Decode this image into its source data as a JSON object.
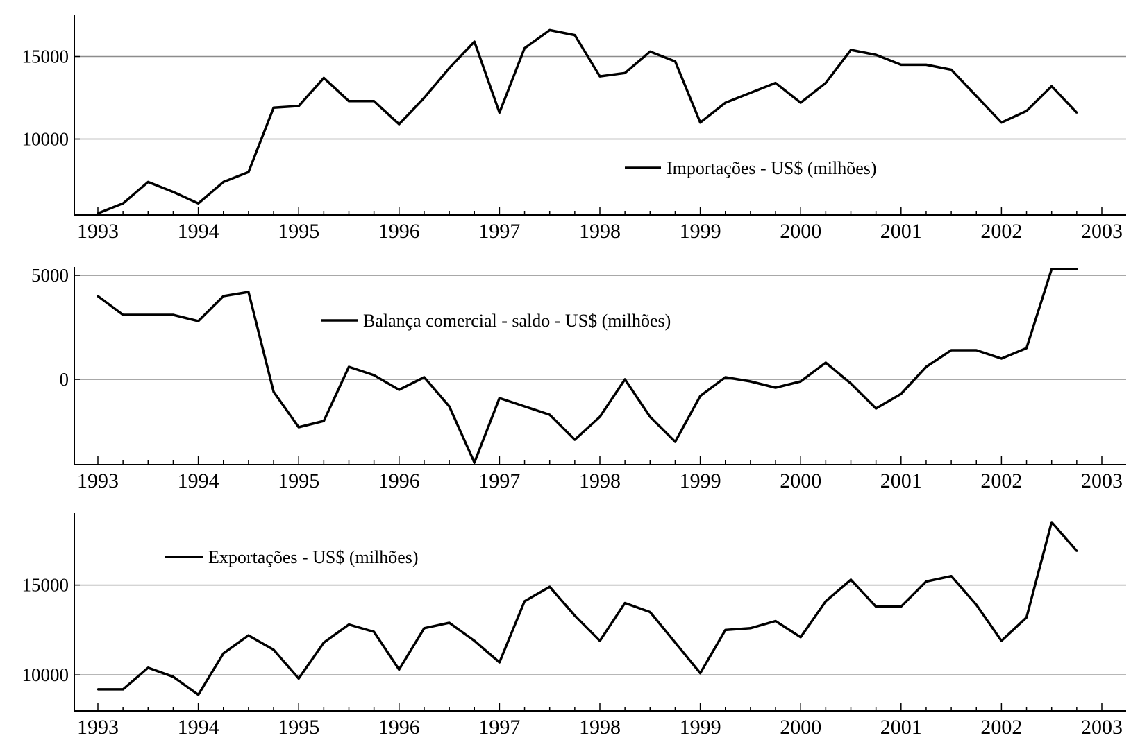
{
  "chart_data": [
    {
      "type": "line",
      "title": "",
      "xlabel": "",
      "ylabel": "",
      "xlim": [
        1992.75,
        2003.25
      ],
      "ylim": [
        5400,
        17500
      ],
      "x_ticks": [
        1993,
        1994,
        1995,
        1996,
        1997,
        1998,
        1999,
        2000,
        2001,
        2002,
        2003
      ],
      "y_ticks": [
        10000,
        15000
      ],
      "grid": "horizontal at y ticks",
      "legend_position": "center-right",
      "series": [
        {
          "name": "Importações - US$ (milhões)",
          "x": [
            1993,
            1993.25,
            1993.5,
            1993.75,
            1994,
            1994.25,
            1994.5,
            1994.75,
            1995,
            1995.25,
            1995.5,
            1995.75,
            1996,
            1996.25,
            1996.5,
            1996.75,
            1997,
            1997.25,
            1997.5,
            1997.75,
            1998,
            1998.25,
            1998.5,
            1998.75,
            1999,
            1999.25,
            1999.5,
            1999.75,
            2000,
            2000.25,
            2000.5,
            2000.75,
            2001,
            2001.25,
            2001.5,
            2001.75,
            2002,
            2002.25,
            2002.5,
            2002.75
          ],
          "values": [
            5500,
            6100,
            7400,
            6800,
            6100,
            7400,
            8000,
            11900,
            12000,
            13700,
            12300,
            12300,
            10900,
            12500,
            14300,
            15900,
            11600,
            15500,
            16600,
            16300,
            13800,
            14000,
            15300,
            14700,
            11000,
            12200,
            12800,
            13400,
            12200,
            13400,
            15400,
            15100,
            14500,
            14500,
            14200,
            12600,
            11000,
            11700,
            13200,
            11600
          ]
        }
      ]
    },
    {
      "type": "line",
      "title": "",
      "xlabel": "",
      "ylabel": "",
      "xlim": [
        1992.75,
        2003.25
      ],
      "ylim": [
        -4100,
        5400
      ],
      "x_ticks": [
        1993,
        1994,
        1995,
        1996,
        1997,
        1998,
        1999,
        2000,
        2001,
        2002,
        2003
      ],
      "y_ticks": [
        0,
        5000
      ],
      "grid": "horizontal at y ticks",
      "legend_position": "top-center",
      "series": [
        {
          "name": "Balança comercial - saldo - US$ (milhões)",
          "x": [
            1993,
            1993.25,
            1993.5,
            1993.75,
            1994,
            1994.25,
            1994.5,
            1994.75,
            1995,
            1995.25,
            1995.5,
            1995.75,
            1996,
            1996.25,
            1996.5,
            1996.75,
            1997,
            1997.25,
            1997.5,
            1997.75,
            1998,
            1998.25,
            1998.5,
            1998.75,
            1999,
            1999.25,
            1999.5,
            1999.75,
            2000,
            2000.25,
            2000.5,
            2000.75,
            2001,
            2001.25,
            2001.5,
            2001.75,
            2002,
            2002.25,
            2002.5,
            2002.75
          ],
          "values": [
            4000,
            3100,
            3100,
            3100,
            2800,
            4000,
            4200,
            -600,
            -2300,
            -2000,
            600,
            200,
            -500,
            100,
            -1300,
            -4000,
            -900,
            -1300,
            -1700,
            -2900,
            -1800,
            0,
            -1800,
            -3000,
            -800,
            100,
            -100,
            -400,
            -100,
            800,
            -200,
            -1400,
            -700,
            600,
            1400,
            1400,
            1000,
            1500,
            5300,
            5300
          ]
        }
      ]
    },
    {
      "type": "line",
      "title": "",
      "xlabel": "",
      "ylabel": "",
      "xlim": [
        1992.75,
        2003.25
      ],
      "ylim": [
        8000,
        19000
      ],
      "x_ticks": [
        1993,
        1994,
        1995,
        1996,
        1997,
        1998,
        1999,
        2000,
        2001,
        2002,
        2003
      ],
      "y_ticks": [
        10000,
        15000
      ],
      "grid": "horizontal at y ticks",
      "legend_position": "top-left",
      "series": [
        {
          "name": "Exportações - US$ (milhões)",
          "x": [
            1993,
            1993.25,
            1993.5,
            1993.75,
            1994,
            1994.25,
            1994.5,
            1994.75,
            1995,
            1995.25,
            1995.5,
            1995.75,
            1996,
            1996.25,
            1996.5,
            1996.75,
            1997,
            1997.25,
            1997.5,
            1997.75,
            1998,
            1998.25,
            1998.5,
            1998.75,
            1999,
            1999.25,
            1999.5,
            1999.75,
            2000,
            2000.25,
            2000.5,
            2000.75,
            2001,
            2001.25,
            2001.5,
            2001.75,
            2002,
            2002.25,
            2002.5,
            2002.75
          ],
          "values": [
            9200,
            9200,
            10400,
            9900,
            8900,
            11200,
            12200,
            11400,
            9800,
            11800,
            12800,
            12400,
            10300,
            12600,
            12900,
            11900,
            10700,
            14100,
            14900,
            13300,
            11900,
            14000,
            13500,
            11800,
            10100,
            12500,
            12600,
            13000,
            12100,
            14100,
            15300,
            13800,
            13800,
            15200,
            15500,
            13900,
            11900,
            13200,
            18500,
            16900
          ]
        }
      ]
    }
  ]
}
